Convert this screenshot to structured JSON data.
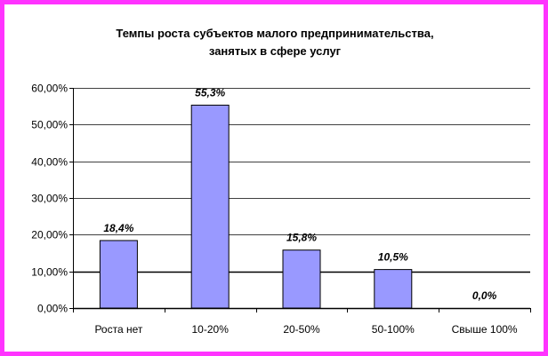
{
  "chart_data": {
    "type": "bar",
    "title_lines": [
      "Темпы роста субъектов малого предпринимательства,",
      "занятых в сфере услуг"
    ],
    "categories": [
      "Роста нет",
      "10-20%",
      "20-50%",
      "50-100%",
      "Свыше 100%"
    ],
    "values": [
      18.4,
      55.3,
      15.8,
      10.5,
      0.0
    ],
    "data_labels": [
      "18,4%",
      "55,3%",
      "15,8%",
      "10,5%",
      "0,0%"
    ],
    "ylim": [
      0,
      60
    ],
    "yticks": [
      0,
      10,
      20,
      30,
      40,
      50,
      60
    ],
    "ytick_labels": [
      "0,00%",
      "10,00%",
      "20,00%",
      "30,00%",
      "40,00%",
      "50,00%",
      "60,00%"
    ],
    "xlabel": "",
    "ylabel": "",
    "grid": true,
    "legend": "none",
    "bar_color": "#9999ff",
    "border_color": "#ff33ff"
  }
}
